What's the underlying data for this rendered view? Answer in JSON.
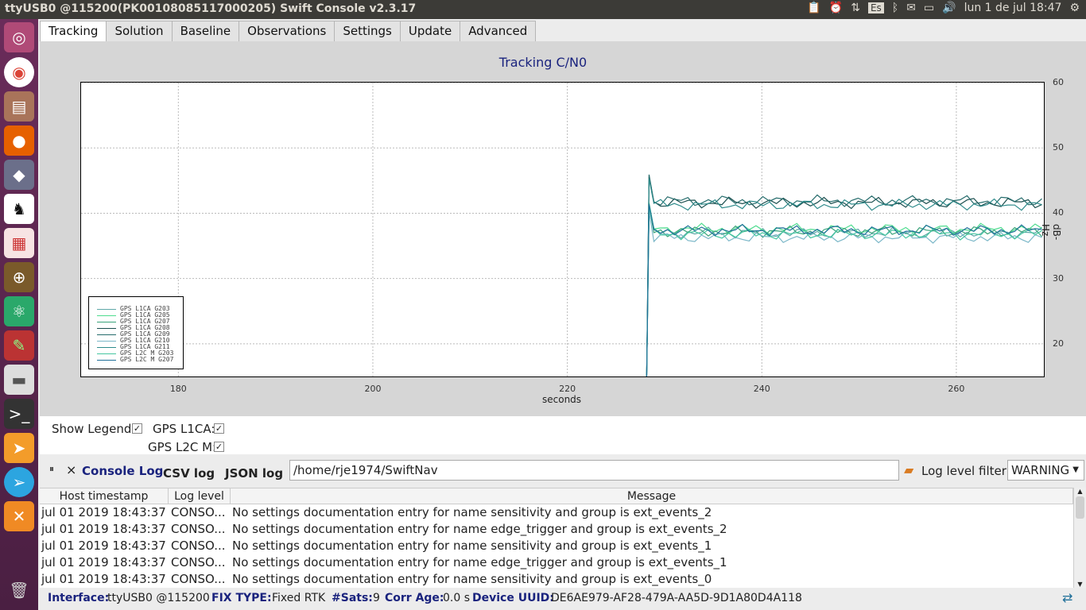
{
  "window": {
    "title": "ttyUSB0 @115200(PK00108085117000205) Swift Console v2.3.17"
  },
  "tray": {
    "lang": "Es",
    "datetime": "lun  1 de jul 18:47"
  },
  "tabs": [
    "Tracking",
    "Solution",
    "Baseline",
    "Observations",
    "Settings",
    "Update",
    "Advanced"
  ],
  "plot": {
    "title": "Tracking C/N0",
    "xlabel": "seconds",
    "ylabel": "dB-Hz"
  },
  "chart_data": {
    "type": "line",
    "title": "Tracking C/N0",
    "xlabel": "seconds",
    "ylabel": "dB-Hz",
    "xlim": [
      170,
      269
    ],
    "ylim": [
      15,
      60
    ],
    "xticks": [
      180,
      200,
      220,
      240,
      260
    ],
    "yticks": [
      20,
      30,
      40,
      50,
      60
    ],
    "grid": true,
    "legend_position": "bottom-left",
    "x_start": 228.4,
    "series": [
      {
        "name": "GPS L1CA G203",
        "color": "#5fa8a8",
        "level": 37.0
      },
      {
        "name": "GPS L1CA G205",
        "color": "#4ddc8e",
        "level": 37.6
      },
      {
        "name": "GPS L1CA G207",
        "color": "#3aa37a",
        "level": 37.2
      },
      {
        "name": "GPS L1CA G208",
        "color": "#1b4f4f",
        "level": 41.6
      },
      {
        "name": "GPS L1CA G209",
        "color": "#266c6c",
        "level": 41.9
      },
      {
        "name": "GPS L1CA G210",
        "color": "#7bb7c8",
        "level": 36.3
      },
      {
        "name": "GPS L1CA G211",
        "color": "#2e8b8b",
        "level": 41.3
      },
      {
        "name": "GPS L2C M G203",
        "color": "#45c7a0",
        "level": 36.8
      },
      {
        "name": "GPS L2C M G207",
        "color": "#1f6f99",
        "level": 37.4
      }
    ]
  },
  "controls": {
    "show_legend": "Show Legend:",
    "gps_l1ca": "GPS L1CA:",
    "gps_l2cm": "GPS L2C M:",
    "check": "✓"
  },
  "console": {
    "pause": "⏸",
    "close": "×",
    "console_log": "Console Log",
    "csv_log": "CSV log",
    "json_log": "JSON log",
    "path": "/home/rje1974/SwiftNav",
    "filter_label": "Log level filter:",
    "filter_value": "WARNING"
  },
  "log": {
    "headers": [
      "Host timestamp",
      "Log level",
      "Message"
    ],
    "rows": [
      {
        "ts": "jul 01 2019 18:43:37",
        "lvl": "CONSO...",
        "msg": "No settings documentation entry for name sensitivity and group is ext_events_2"
      },
      {
        "ts": "jul 01 2019 18:43:37",
        "lvl": "CONSO...",
        "msg": "No settings documentation entry for name edge_trigger and group is ext_events_2"
      },
      {
        "ts": "jul 01 2019 18:43:37",
        "lvl": "CONSO...",
        "msg": "No settings documentation entry for name sensitivity and group is ext_events_1"
      },
      {
        "ts": "jul 01 2019 18:43:37",
        "lvl": "CONSO...",
        "msg": "No settings documentation entry for name edge_trigger and group is ext_events_1"
      },
      {
        "ts": "jul 01 2019 18:43:37",
        "lvl": "CONSO...",
        "msg": "No settings documentation entry for name sensitivity and group is ext_events_0"
      }
    ]
  },
  "status": {
    "interface_label": "Interface:",
    "interface": "ttyUSB0 @115200",
    "fix_label": "FIX TYPE:",
    "fix": "Fixed RTK",
    "sats_label": "#Sats:",
    "sats": "9",
    "corr_label": "Corr Age:",
    "corr": "0.0 s",
    "uuid_label": "Device UUID:",
    "uuid": "DE6AE979-AF28-479A-AA5D-9D1A80D4A118"
  }
}
